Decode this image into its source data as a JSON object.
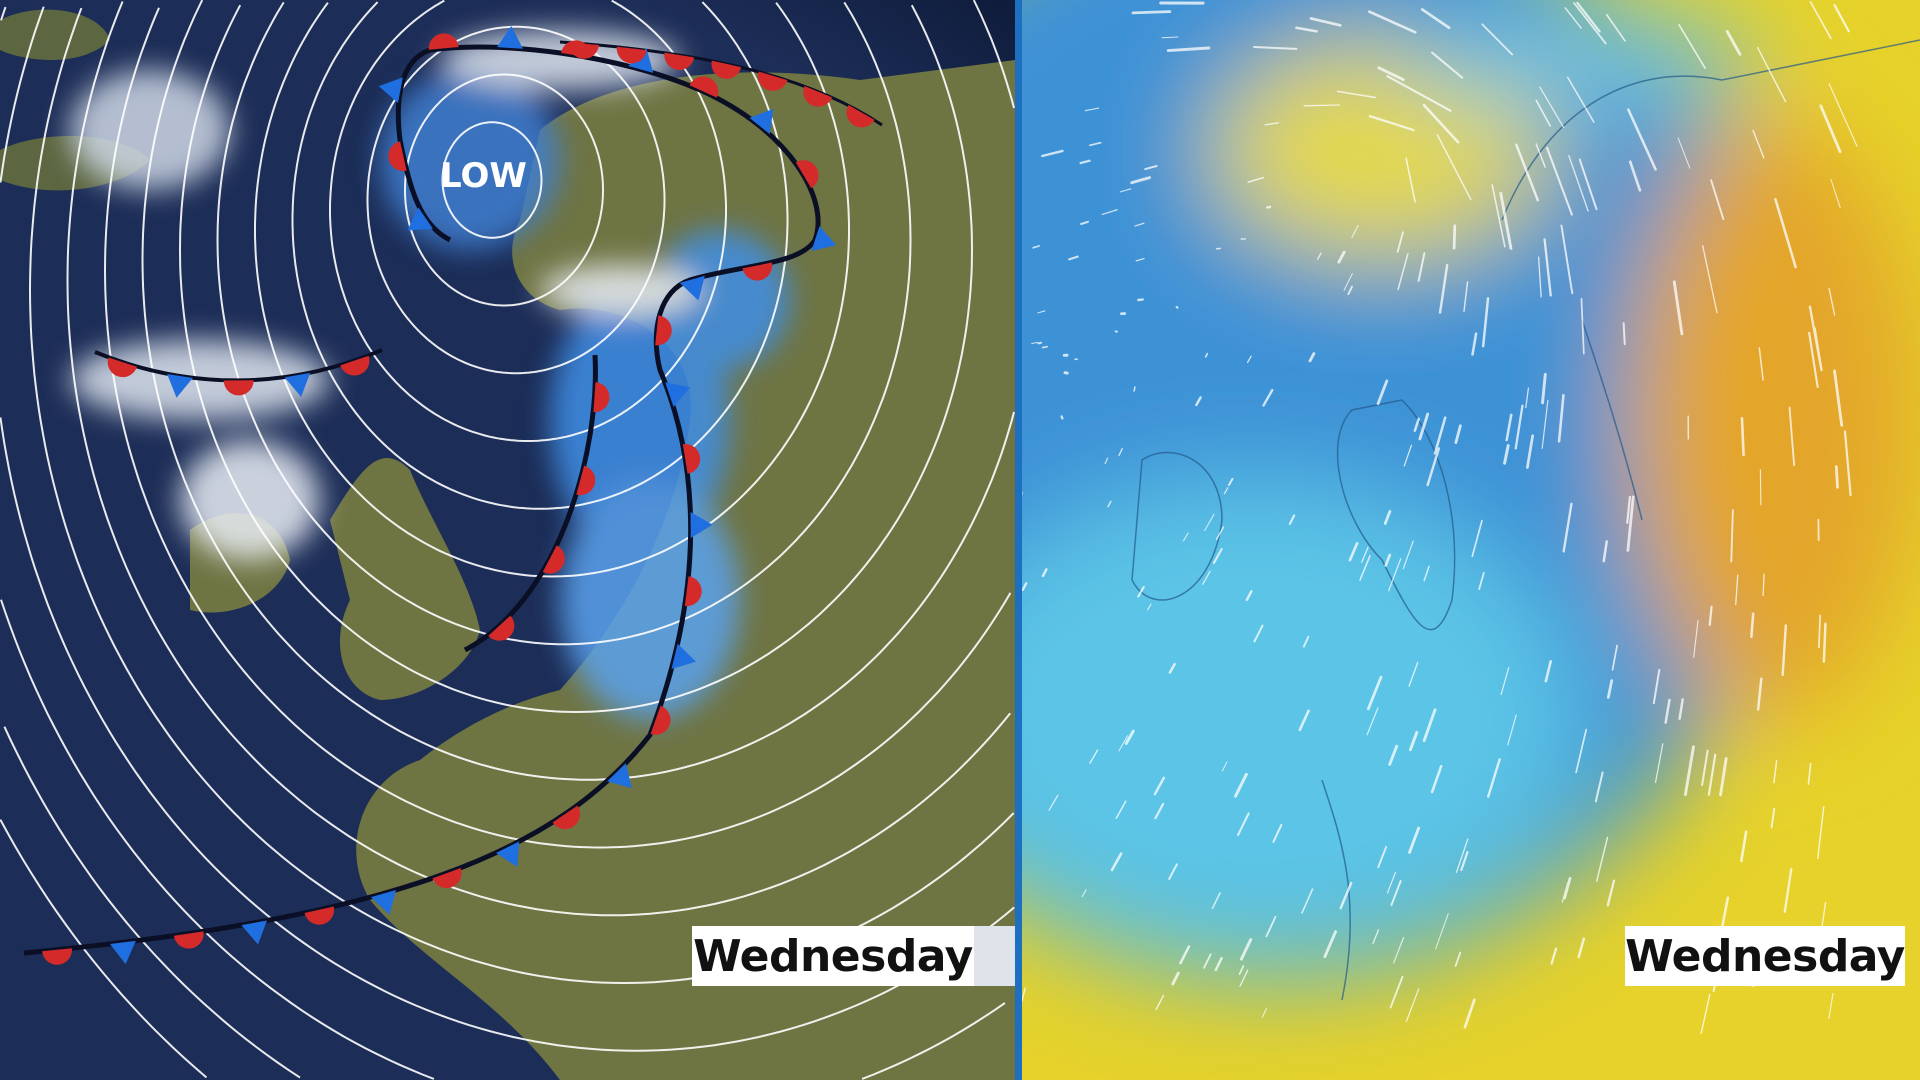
{
  "left_map": {
    "pressure_label": "LOW",
    "day_label": "Wednesday",
    "colors": {
      "sea": "#1c2d57",
      "land": "#6f7443",
      "cold_front": "#1f6fe0",
      "warm_front": "#d42a2a",
      "isobar": "#ffffff",
      "rain": "#3f8fe6"
    }
  },
  "right_map": {
    "day_label": "Wednesday",
    "colors": {
      "cold_air": "#4fb4e6",
      "warm_air": "#e9c72a",
      "wind_arrows": "#ffffff"
    }
  },
  "divider_color": "#1d6fc0"
}
